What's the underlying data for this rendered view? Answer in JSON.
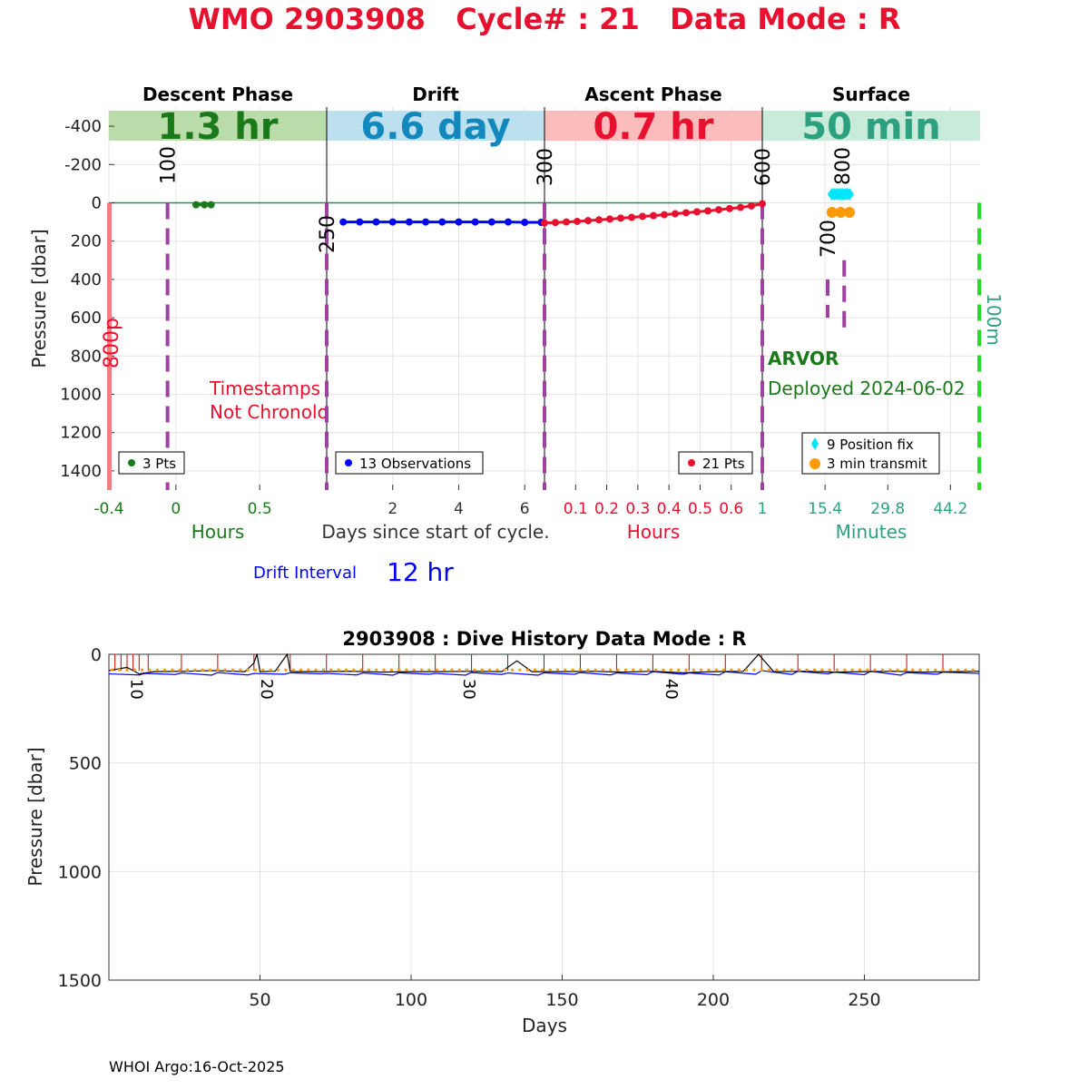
{
  "title": "WMO 2903908   Cycle# : 21   Data Mode : R",
  "footer": "WHOI Argo:16-Oct-2025",
  "colors": {
    "title": "#e8102f",
    "descent": "#1a7a1a",
    "drift": "#0000ff",
    "ascent": "#e8102f",
    "surface": "#2ca07f",
    "cycle_line": "#a040a0",
    "position": "#00e5ff",
    "transmit": "#ff9a00"
  },
  "chart_data": [
    {
      "type": "scatter",
      "ylabel": "Pressure [dbar]",
      "ylim": [
        1500,
        -500
      ],
      "yticks": [
        -400,
        -200,
        0,
        200,
        400,
        600,
        800,
        1000,
        1200,
        1400
      ],
      "xlabel_center": "Days since start of cycle.",
      "grid": true,
      "panels": [
        {
          "name": "descent",
          "phase": "Descent Phase",
          "duration": "1.3 hr",
          "axis_label": "Hours",
          "xlim": [
            -0.4,
            0.9
          ],
          "xticks": [
            -0.4,
            0,
            0.5
          ],
          "xtick_labels": [
            "-0.4",
            "0",
            "0.5"
          ],
          "legend": "3 Pts",
          "x": [
            0.12,
            0.17,
            0.21
          ],
          "y": [
            10,
            10,
            10
          ],
          "annotation": [
            "Timestamps",
            "Not Chronolo"
          ],
          "vlines": [
            {
              "x": -0.05,
              "label": "100"
            }
          ],
          "pressure_bar": {
            "label": "800p"
          }
        },
        {
          "name": "drift",
          "phase": "Drift",
          "duration": "6.6 day",
          "axis_label": "",
          "xlim": [
            0.0,
            6.6
          ],
          "xticks": [
            2,
            4,
            6
          ],
          "xtick_labels": [
            "2",
            "4",
            "6"
          ],
          "legend": "13 Observations",
          "x": [
            0.5,
            1.0,
            1.5,
            2.0,
            2.5,
            3.0,
            3.5,
            4.0,
            4.5,
            5.0,
            5.5,
            6.0,
            6.5
          ],
          "y": [
            100,
            100,
            100,
            100,
            100,
            100,
            100,
            100,
            100,
            100,
            100,
            102,
            102
          ],
          "drift_interval_label": "Drift Interval",
          "drift_interval": "12 hr",
          "vlines": [
            {
              "x": 0.0,
              "label": "250"
            },
            {
              "x": 6.6,
              "label": "300"
            }
          ]
        },
        {
          "name": "ascent",
          "phase": "Ascent Phase",
          "duration": "0.7 hr",
          "axis_label": "Hours",
          "xlim": [
            0.0,
            0.7
          ],
          "xticks": [
            0.1,
            0.2,
            0.3,
            0.4,
            0.5,
            0.6
          ],
          "xtick_labels": [
            "0.1",
            "0.2",
            "0.3",
            "0.4",
            "0.5",
            "0.6"
          ],
          "legend": "21 Pts",
          "x": [
            0.0,
            0.035,
            0.07,
            0.105,
            0.14,
            0.175,
            0.21,
            0.245,
            0.28,
            0.315,
            0.35,
            0.385,
            0.42,
            0.455,
            0.49,
            0.525,
            0.56,
            0.595,
            0.63,
            0.665,
            0.7
          ],
          "y": [
            105,
            103,
            100,
            97,
            93,
            89,
            85,
            80,
            76,
            71,
            67,
            62,
            57,
            52,
            47,
            42,
            36,
            30,
            24,
            16,
            5
          ],
          "vlines": [
            {
              "x": 0.7,
              "label": "600"
            }
          ]
        },
        {
          "name": "surface",
          "phase": "Surface",
          "duration": "50 min",
          "axis_label": "Minutes",
          "xlim": [
            1,
            51
          ],
          "xticks": [
            1,
            15.4,
            29.8,
            44.2
          ],
          "xtick_labels": [
            "1",
            "15.4",
            "29.8",
            "44.2"
          ],
          "legend": [
            "9 Position fix",
            "3 min transmit"
          ],
          "position_fix": {
            "x": [
              17,
              17.5,
              18,
              18.5,
              19,
              19.5,
              20,
              20.5,
              21
            ],
            "y": [
              -45,
              -45,
              -45,
              -45,
              -45,
              -45,
              -45,
              -45,
              -45
            ]
          },
          "transmit": {
            "x": [
              17,
              19,
              21
            ],
            "y": [
              50,
              50,
              50
            ]
          },
          "vlines": [
            {
              "x": 16,
              "label": "700",
              "from": 600,
              "to": 400
            },
            {
              "x": 19.8,
              "label": "800",
              "from": 680,
              "to": 300
            }
          ],
          "right_line_label": "100m",
          "float_type": "ARVOR",
          "deployed": "Deployed 2024-06-02"
        }
      ]
    },
    {
      "type": "line",
      "title": "2903908 : Dive History      Data Mode : R",
      "xlabel": "Days",
      "ylabel": "Pressure [dbar]",
      "xlim": [
        0,
        288
      ],
      "ylim": [
        1500,
        0
      ],
      "xticks": [
        50,
        100,
        150,
        200,
        250
      ],
      "yticks": [
        0,
        500,
        1000,
        1500
      ],
      "grid": true,
      "cycle_labels": [
        {
          "x": 5,
          "label": "10"
        },
        {
          "x": 48,
          "label": "20"
        },
        {
          "x": 115,
          "label": "30"
        },
        {
          "x": 182,
          "label": "40"
        }
      ],
      "series": [
        {
          "color": "#0000ff",
          "x": [
            0,
            10,
            12,
            22,
            24,
            34,
            36,
            46,
            48,
            58,
            60,
            70,
            72,
            82,
            84,
            94,
            96,
            106,
            108,
            118,
            120,
            130,
            132,
            142,
            144,
            154,
            156,
            166,
            168,
            178,
            180,
            190,
            192,
            202,
            204,
            214,
            216,
            226,
            228,
            238,
            240,
            250,
            252,
            262,
            264,
            274,
            276,
            288
          ],
          "y": [
            90,
            95,
            88,
            93,
            86,
            96,
            84,
            95,
            88,
            92,
            85,
            90,
            88,
            95,
            86,
            96,
            85,
            92,
            88,
            96,
            84,
            93,
            86,
            96,
            85,
            92,
            84,
            95,
            86,
            94,
            80,
            92,
            86,
            95,
            80,
            92,
            75,
            93,
            78,
            90,
            82,
            94,
            78,
            96,
            84,
            92,
            82,
            88
          ]
        },
        {
          "color": "#000000",
          "x": [
            0,
            6,
            10,
            15,
            25,
            35,
            45,
            48,
            49,
            50,
            55,
            59,
            60,
            62,
            70,
            80,
            90,
            100,
            110,
            120,
            130,
            135,
            140,
            150,
            160,
            170,
            180,
            190,
            200,
            210,
            215,
            220,
            230,
            240,
            250,
            260,
            270,
            280,
            288
          ],
          "y": [
            75,
            60,
            90,
            80,
            78,
            75,
            80,
            40,
            -2,
            80,
            78,
            0,
            78,
            80,
            80,
            78,
            82,
            80,
            80,
            78,
            80,
            30,
            80,
            80,
            78,
            82,
            78,
            85,
            80,
            78,
            0,
            80,
            78,
            82,
            80,
            78,
            82,
            80,
            78
          ]
        }
      ],
      "markers_orange_y": 72,
      "red_stems_x": [
        2,
        4,
        6,
        8,
        10,
        13,
        24,
        36,
        48,
        60,
        72,
        84,
        96,
        108,
        120,
        132,
        144,
        156,
        168,
        180,
        192,
        204,
        216,
        228,
        240,
        252,
        264,
        276
      ]
    }
  ]
}
